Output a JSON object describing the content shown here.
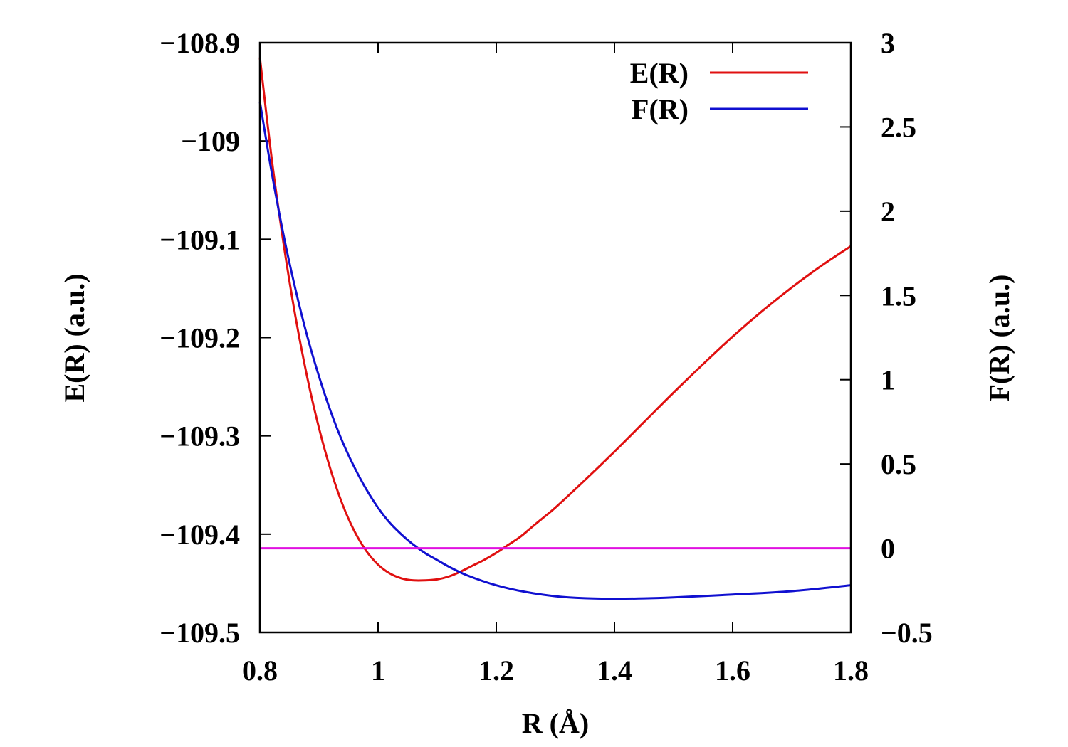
{
  "chart_data": {
    "type": "line",
    "xlabel": "R (Å)",
    "ylabel_left": "E(R) (a.u.)",
    "ylabel_right": "F(R) (a.u.)",
    "xlim": [
      0.8,
      1.8
    ],
    "ylim_left": [
      -109.5,
      -108.9
    ],
    "ylim_right": [
      -0.5,
      3
    ],
    "x_ticks": [
      {
        "value": 0.8,
        "label": "0.8"
      },
      {
        "value": 1.0,
        "label": "1"
      },
      {
        "value": 1.2,
        "label": "1.2"
      },
      {
        "value": 1.4,
        "label": "1.4"
      },
      {
        "value": 1.6,
        "label": "1.6"
      },
      {
        "value": 1.8,
        "label": "1.8"
      }
    ],
    "y_left_ticks": [
      {
        "value": -108.9,
        "label": "−108.9"
      },
      {
        "value": -109.0,
        "label": "−109"
      },
      {
        "value": -109.1,
        "label": "−109.1"
      },
      {
        "value": -109.2,
        "label": "−109.2"
      },
      {
        "value": -109.3,
        "label": "−109.3"
      },
      {
        "value": -109.4,
        "label": "−109.4"
      },
      {
        "value": -109.5,
        "label": "−109.5"
      }
    ],
    "y_right_ticks": [
      {
        "value": 3,
        "label": "3"
      },
      {
        "value": 2.5,
        "label": "2.5"
      },
      {
        "value": 2,
        "label": "2"
      },
      {
        "value": 1.5,
        "label": "1.5"
      },
      {
        "value": 1,
        "label": "1"
      },
      {
        "value": 0.5,
        "label": "0.5"
      },
      {
        "value": 0,
        "label": "0"
      },
      {
        "value": -0.5,
        "label": "−0.5"
      }
    ],
    "legend_position": "top-right",
    "series": [
      {
        "name": "E(R)",
        "axis": "left",
        "color": "#e01010",
        "x": [
          0.8,
          0.82,
          0.84,
          0.86,
          0.88,
          0.9,
          0.92,
          0.94,
          0.96,
          0.98,
          1.0,
          1.02,
          1.04,
          1.06,
          1.08,
          1.1,
          1.12,
          1.14,
          1.16,
          1.18,
          1.2,
          1.22,
          1.24,
          1.26,
          1.28,
          1.3,
          1.35,
          1.4,
          1.45,
          1.5,
          1.55,
          1.6,
          1.65,
          1.7,
          1.75,
          1.8
        ],
        "y": [
          -108.915,
          -109.018,
          -109.104,
          -109.178,
          -109.24,
          -109.292,
          -109.335,
          -109.37,
          -109.397,
          -109.417,
          -109.431,
          -109.44,
          -109.445,
          -109.447,
          -109.447,
          -109.446,
          -109.443,
          -109.438,
          -109.432,
          -109.426,
          -109.419,
          -109.411,
          -109.403,
          -109.393,
          -109.383,
          -109.373,
          -109.345,
          -109.316,
          -109.286,
          -109.256,
          -109.227,
          -109.199,
          -109.173,
          -109.149,
          -109.127,
          -109.107
        ]
      },
      {
        "name": "F(R)",
        "axis": "right",
        "color": "#1010d0",
        "x": [
          0.8,
          0.82,
          0.84,
          0.86,
          0.88,
          0.9,
          0.92,
          0.94,
          0.96,
          0.98,
          1.0,
          1.02,
          1.04,
          1.06,
          1.08,
          1.1,
          1.12,
          1.15,
          1.2,
          1.25,
          1.3,
          1.35,
          1.4,
          1.45,
          1.5,
          1.6,
          1.7,
          1.8
        ],
        "y": [
          2.65,
          2.23,
          1.86,
          1.54,
          1.26,
          1.02,
          0.81,
          0.63,
          0.48,
          0.35,
          0.24,
          0.15,
          0.08,
          0.02,
          -0.03,
          -0.07,
          -0.11,
          -0.16,
          -0.22,
          -0.26,
          -0.285,
          -0.297,
          -0.3,
          -0.298,
          -0.292,
          -0.275,
          -0.255,
          -0.22
        ]
      },
      {
        "axis": "right",
        "color": "#e010e0",
        "x": [
          0.8,
          1.8
        ],
        "y": [
          0,
          0
        ]
      }
    ]
  }
}
